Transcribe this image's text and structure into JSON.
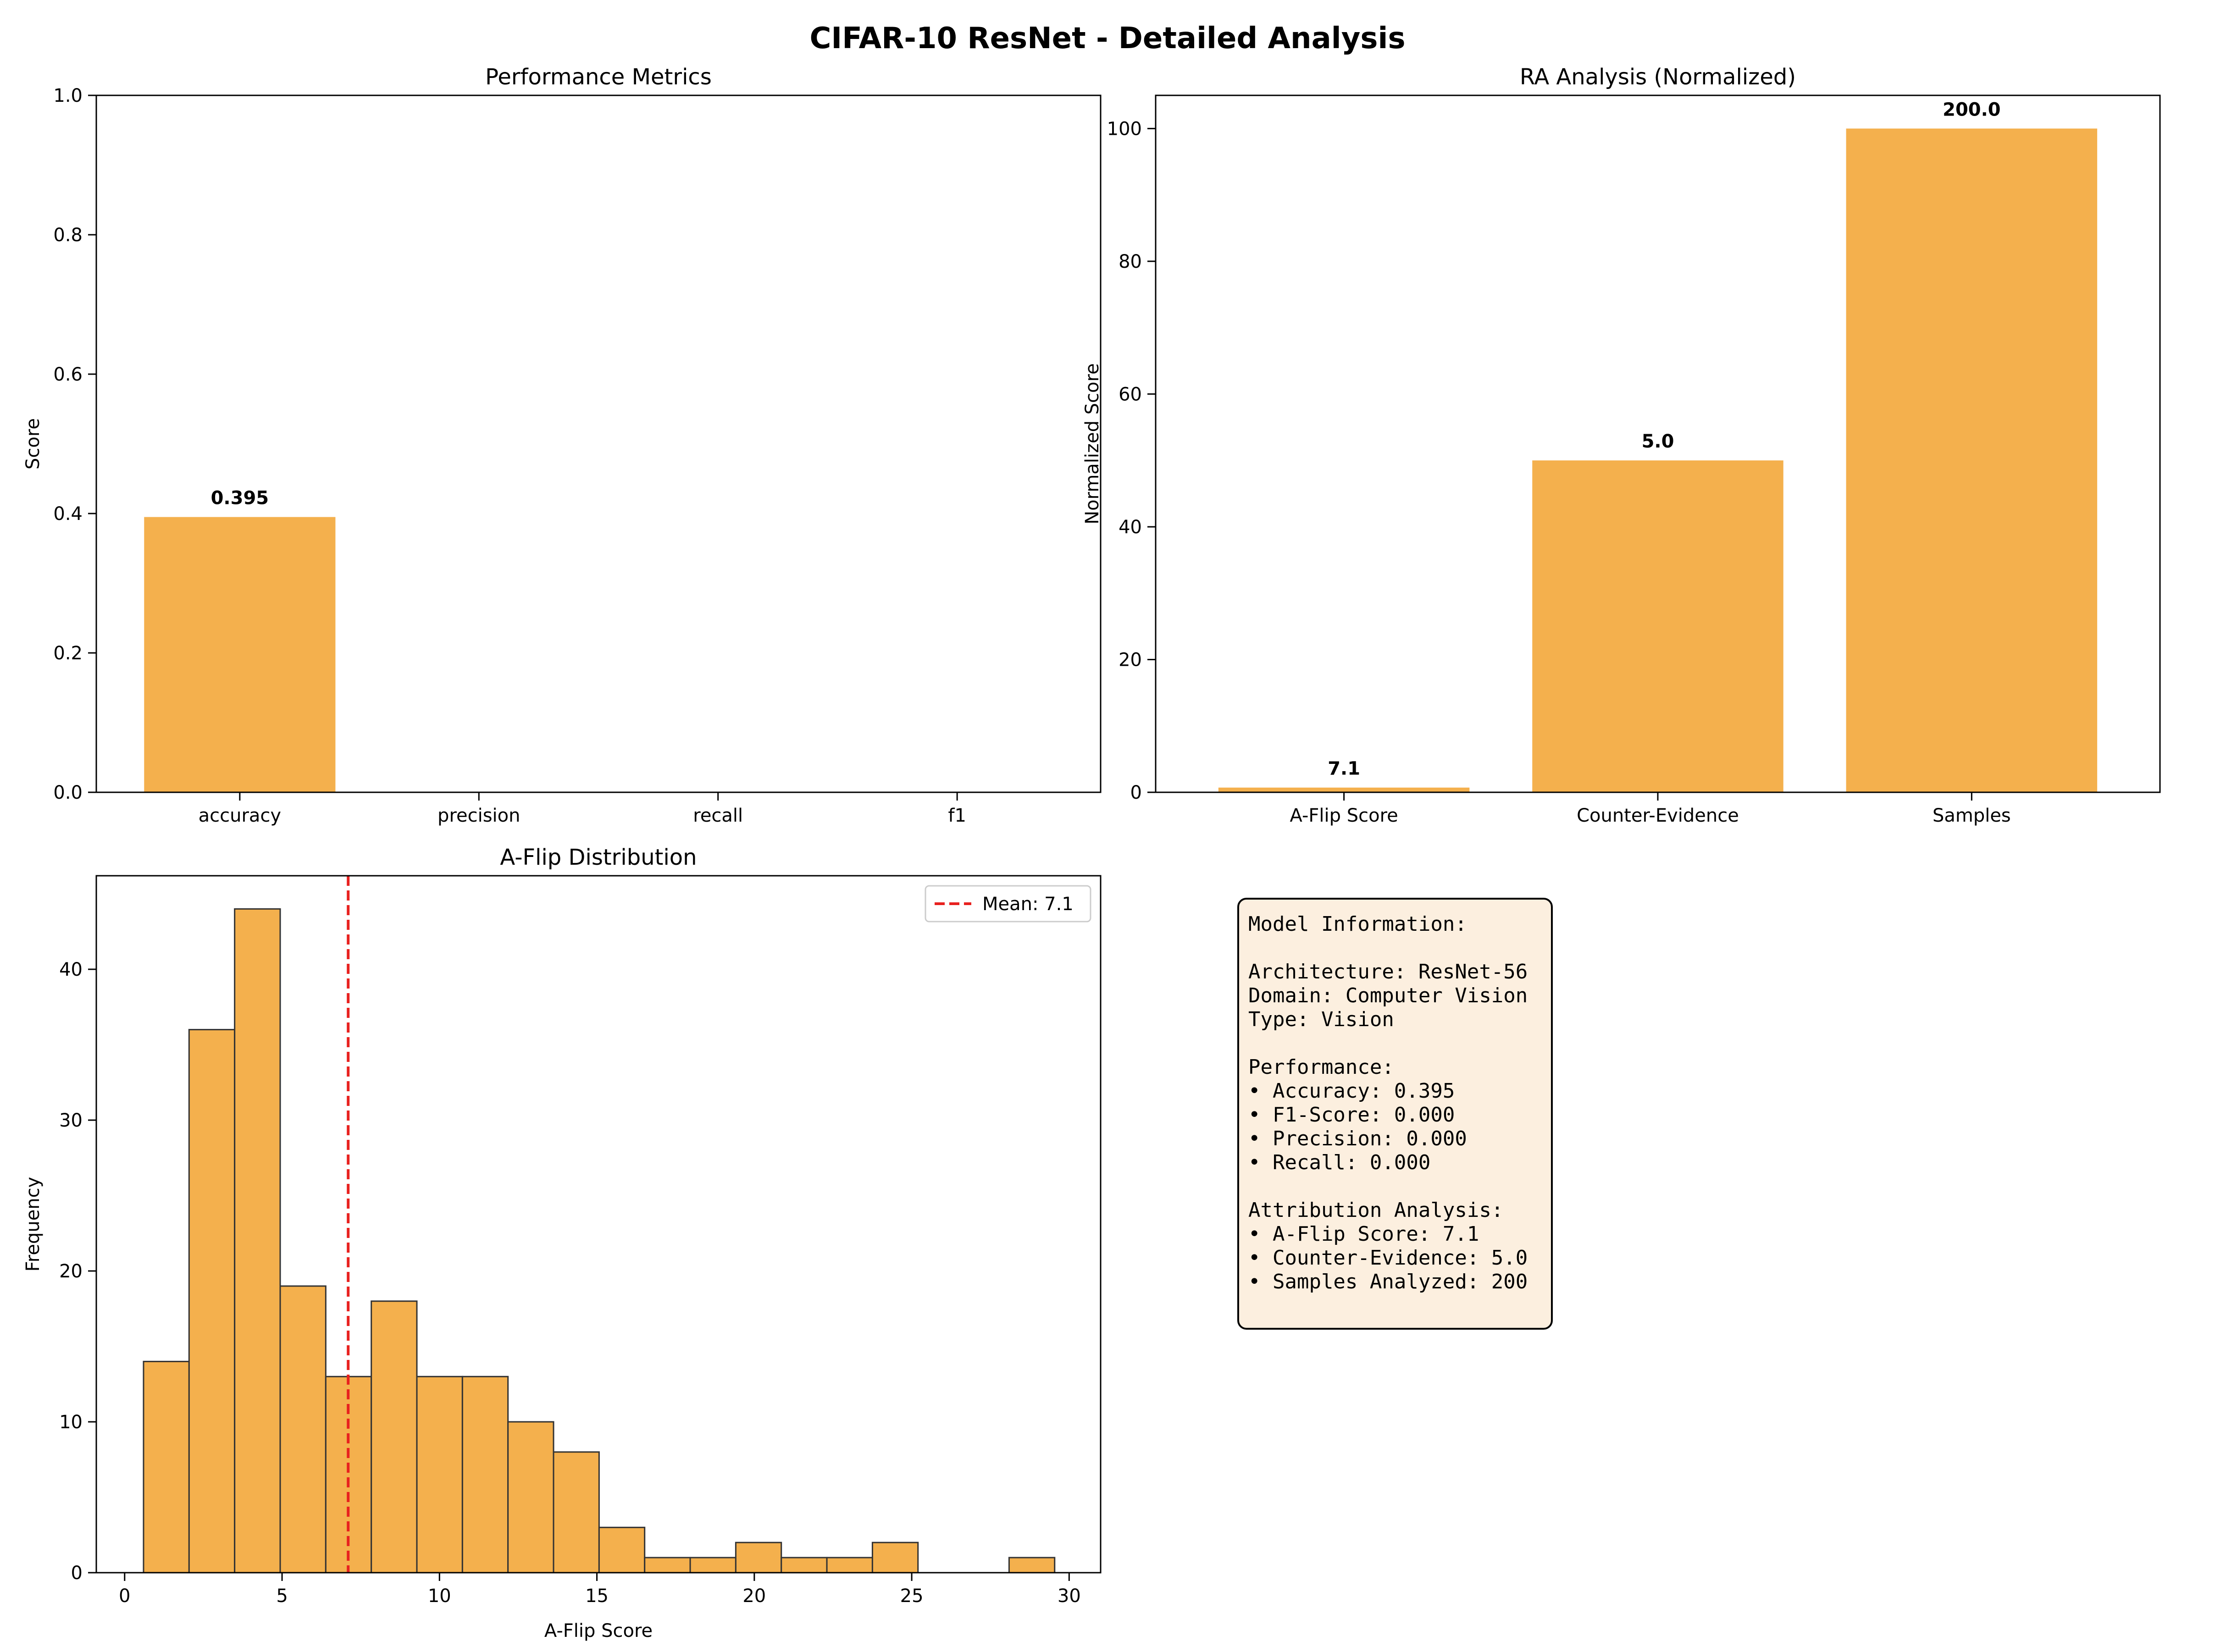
{
  "figure": {
    "suptitle": "CIFAR-10 ResNet - Detailed Analysis"
  },
  "colors": {
    "bar": "#F4B04D",
    "edge": "#333333",
    "mean_line": "#E8211F",
    "info_bg": "#FCEFDF"
  },
  "chart_data": [
    {
      "id": "performance",
      "type": "bar",
      "title": "Performance Metrics",
      "xlabel": "",
      "ylabel": "Score",
      "categories": [
        "accuracy",
        "precision",
        "recall",
        "f1"
      ],
      "values": [
        0.395,
        0.0,
        0.0,
        0.0
      ],
      "data_labels": [
        "0.395",
        "",
        "",
        ""
      ],
      "ylim": [
        0,
        1.0
      ],
      "yticks": [
        0.0,
        0.2,
        0.4,
        0.6,
        0.8,
        1.0
      ],
      "ytick_labels": [
        "0.0",
        "0.2",
        "0.4",
        "0.6",
        "0.8",
        "1.0"
      ],
      "grid": false
    },
    {
      "id": "ra",
      "type": "bar",
      "title": "RA Analysis (Normalized)",
      "xlabel": "",
      "ylabel": "Normalized Score",
      "categories": [
        "A-Flip Score",
        "Counter-Evidence",
        "Samples"
      ],
      "values": [
        0.71,
        50.0,
        100.0
      ],
      "data_labels": [
        "7.1",
        "5.0",
        "200.0"
      ],
      "ylim": [
        0,
        105
      ],
      "yticks": [
        0,
        20,
        40,
        60,
        80,
        100
      ],
      "ytick_labels": [
        "0",
        "20",
        "40",
        "60",
        "80",
        "100"
      ],
      "grid": false
    },
    {
      "id": "aflip",
      "type": "bar",
      "subtype": "histogram",
      "title": "A-Flip Distribution",
      "xlabel": "A-Flip Score",
      "ylabel": "Frequency",
      "bin_start": 0.6,
      "bin_width": 1.447,
      "counts": [
        14,
        36,
        44,
        19,
        13,
        18,
        13,
        13,
        10,
        8,
        3,
        1,
        1,
        2,
        1,
        1,
        2,
        0,
        0,
        1
      ],
      "xlim": [
        -0.9,
        31.0
      ],
      "ylim": [
        0,
        46.2
      ],
      "xticks": [
        0,
        5,
        10,
        15,
        20,
        25,
        30
      ],
      "xtick_labels": [
        "0",
        "5",
        "10",
        "15",
        "20",
        "25",
        "30"
      ],
      "yticks": [
        0,
        10,
        20,
        30,
        40
      ],
      "ytick_labels": [
        "0",
        "10",
        "20",
        "30",
        "40"
      ],
      "mean": 7.1,
      "legend": {
        "label": "Mean: 7.1",
        "position": "upper right"
      },
      "grid": false
    }
  ],
  "info_box": {
    "lines": [
      "Model Information:",
      "",
      "Architecture: ResNet-56",
      "Domain: Computer Vision",
      "Type: Vision",
      "",
      "Performance:",
      "• Accuracy: 0.395",
      "• F1-Score: 0.000",
      "• Precision: 0.000",
      "• Recall: 0.000",
      "",
      "Attribution Analysis:",
      "• A-Flip Score: 7.1",
      "• Counter-Evidence: 5.0",
      "• Samples Analyzed: 200"
    ]
  }
}
